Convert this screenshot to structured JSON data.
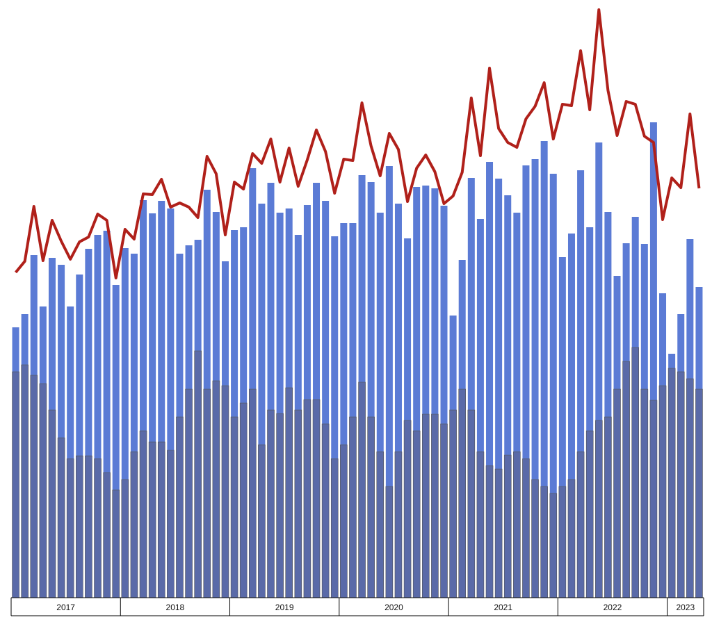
{
  "chart_data": {
    "type": "bar_line",
    "groups": [
      {
        "label": "2017",
        "count": 12
      },
      {
        "label": "2018",
        "count": 12
      },
      {
        "label": "2019",
        "count": 12
      },
      {
        "label": "2020",
        "count": 12
      },
      {
        "label": "2021",
        "count": 12
      },
      {
        "label": "2022",
        "count": 12
      },
      {
        "label": "2023",
        "count": 4
      }
    ],
    "ylim": [
      0,
      860
    ],
    "series": [
      {
        "kind": "bar",
        "color": "#5b7bd5",
        "values": [
          389,
          408,
          493,
          419,
          489,
          479,
          419,
          465,
          502,
          522,
          528,
          450,
          503,
          495,
          572,
          553,
          571,
          560,
          495,
          507,
          515,
          587,
          555,
          484,
          529,
          533,
          618,
          567,
          597,
          554,
          560,
          522,
          565,
          597,
          571,
          520,
          539,
          539,
          608,
          598,
          554,
          621,
          567,
          517,
          591,
          593,
          589,
          564,
          406,
          486,
          604,
          545,
          627,
          603,
          579,
          554,
          622,
          631,
          657,
          610,
          490,
          524,
          615,
          533,
          655,
          555,
          463,
          510,
          548,
          509,
          684,
          438,
          351,
          408,
          516,
          447
        ]
      },
      {
        "kind": "bar",
        "color": "#5a6aa8",
        "values": [
          325,
          335,
          320,
          308,
          270,
          230,
          200,
          204,
          204,
          200,
          180,
          155,
          170,
          210,
          240,
          224,
          224,
          212,
          260,
          300,
          355,
          300,
          312,
          305,
          260,
          280,
          300,
          220,
          270,
          265,
          302,
          270,
          285,
          285,
          250,
          200,
          220,
          260,
          310,
          260,
          210,
          160,
          210,
          255,
          240,
          264,
          264,
          250,
          270,
          300,
          270,
          210,
          190,
          185,
          205,
          210,
          200,
          170,
          160,
          150,
          160,
          170,
          210,
          240,
          255,
          260,
          300,
          340,
          360,
          300,
          284,
          305,
          330,
          325,
          315,
          300
        ]
      },
      {
        "kind": "line",
        "color": "#b0201a",
        "values": [
          468,
          484,
          563,
          485,
          543,
          513,
          487,
          512,
          519,
          552,
          543,
          460,
          530,
          516,
          581,
          580,
          602,
          562,
          568,
          562,
          547,
          635,
          610,
          522,
          598,
          588,
          639,
          625,
          660,
          598,
          647,
          592,
          630,
          673,
          642,
          582,
          631,
          629,
          712,
          650,
          607,
          668,
          645,
          570,
          618,
          637,
          613,
          567,
          578,
          612,
          719,
          636,
          762,
          675,
          655,
          648,
          689,
          707,
          741,
          660,
          710,
          708,
          787,
          702,
          846,
          730,
          665,
          714,
          710,
          664,
          655,
          544,
          604,
          590,
          696,
          589
        ]
      }
    ]
  }
}
